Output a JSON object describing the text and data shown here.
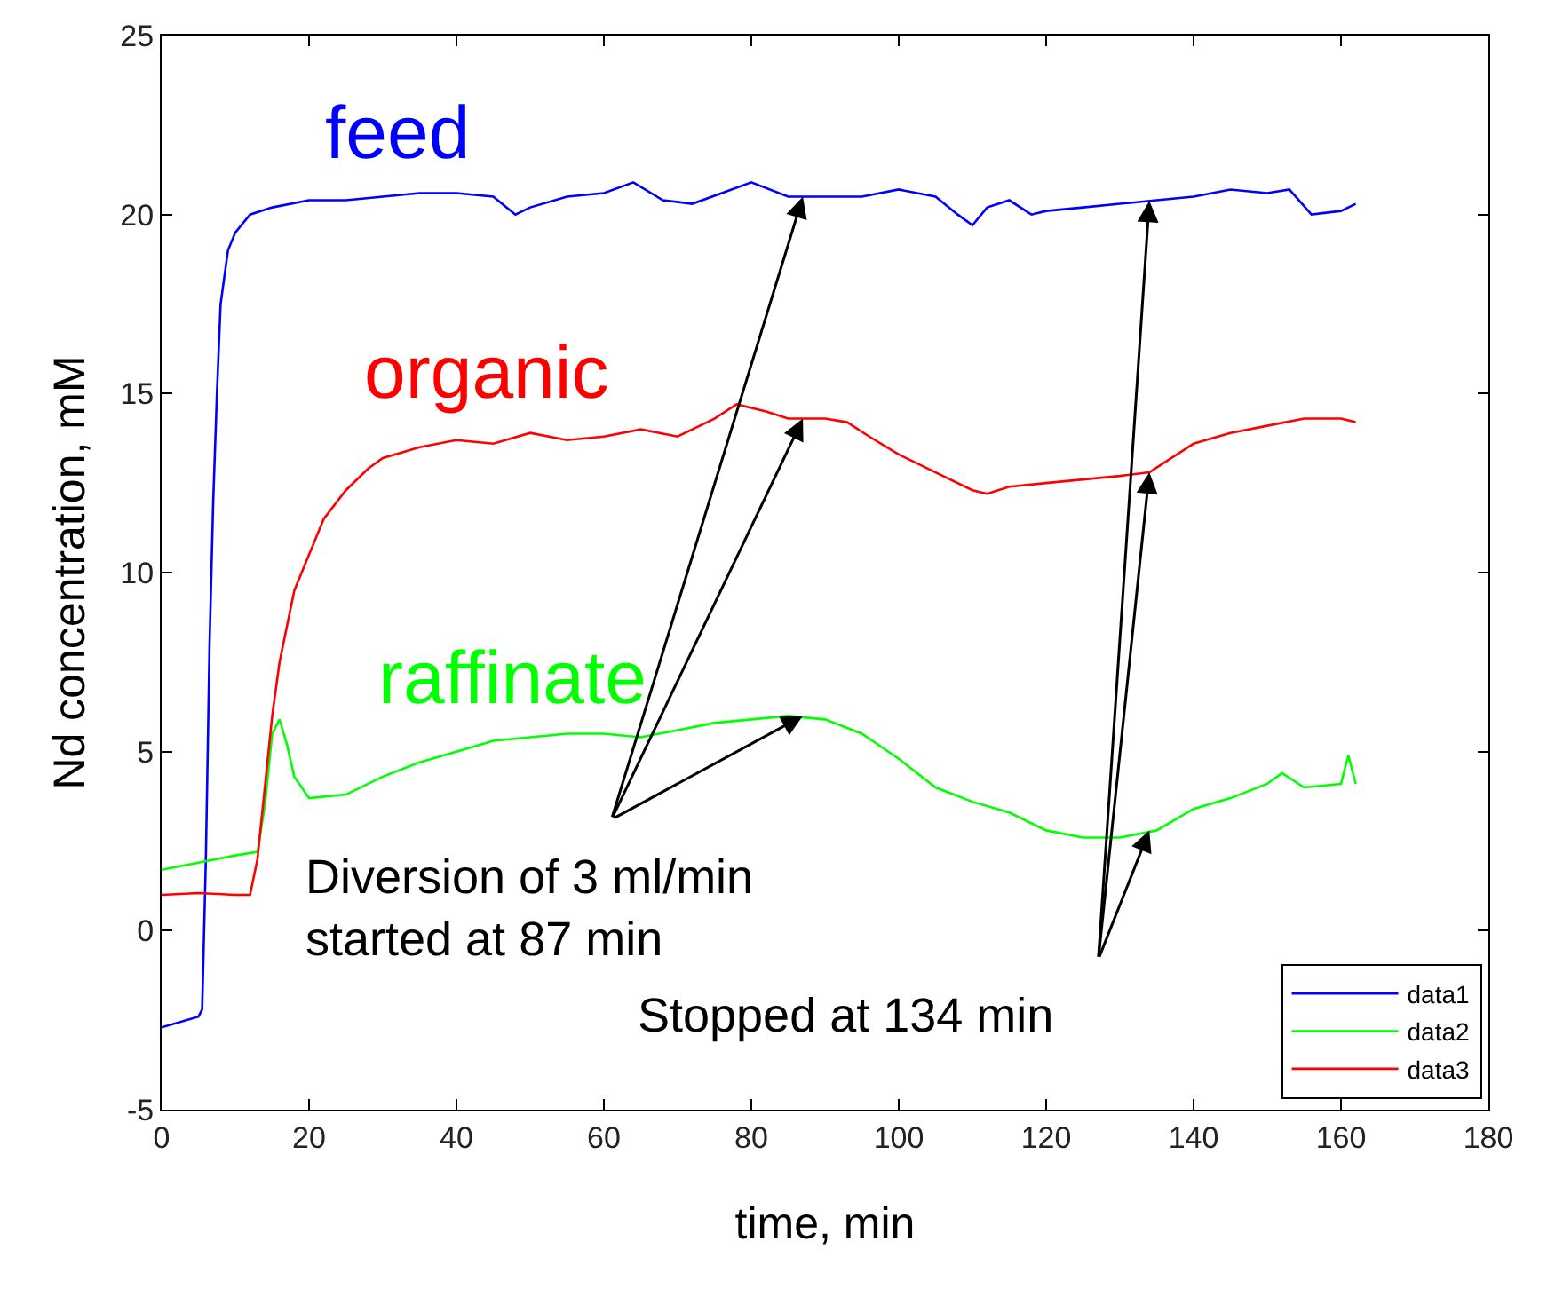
{
  "chart_data": {
    "type": "line",
    "xlabel": "time, min",
    "ylabel": "Nd concentration, mM",
    "xlim": [
      0,
      180
    ],
    "xticks": [
      0,
      20,
      40,
      60,
      80,
      100,
      120,
      140,
      160,
      180
    ],
    "ylim": [
      -5,
      25
    ],
    "yticks": [
      -5,
      0,
      5,
      10,
      15,
      20,
      25
    ],
    "grid": false,
    "legend": "bottom right",
    "marker": "none",
    "line_style": "solid",
    "series": [
      {
        "name": "data1",
        "color": "#0000ff",
        "x": [
          0,
          5,
          5.5,
          6,
          6.5,
          7,
          7.5,
          8,
          9,
          10,
          12,
          15,
          20,
          25,
          30,
          35,
          40,
          45,
          48,
          50,
          55,
          60,
          64,
          68,
          72,
          76,
          80,
          85,
          90,
          95,
          100,
          105,
          108,
          110,
          112,
          115,
          118,
          120,
          125,
          130,
          135,
          140,
          145,
          150,
          153,
          156,
          160,
          162
        ],
        "values": [
          -2.7,
          -2.4,
          -2.2,
          2,
          8,
          12,
          15,
          17.5,
          19,
          19.5,
          20,
          20.2,
          20.4,
          20.4,
          20.5,
          20.6,
          20.6,
          20.5,
          20.0,
          20.2,
          20.5,
          20.6,
          20.9,
          20.4,
          20.3,
          20.6,
          20.9,
          20.5,
          20.5,
          20.5,
          20.7,
          20.5,
          20.0,
          19.7,
          20.2,
          20.4,
          20.0,
          20.1,
          20.2,
          20.3,
          20.4,
          20.5,
          20.7,
          20.6,
          20.7,
          20.0,
          20.1,
          20.3
        ]
      },
      {
        "name": "data2",
        "color": "#00ff00",
        "x": [
          0,
          5,
          10,
          13,
          14,
          15,
          16,
          17,
          18,
          20,
          25,
          30,
          35,
          40,
          45,
          50,
          55,
          60,
          65,
          70,
          75,
          80,
          85,
          90,
          95,
          100,
          105,
          110,
          115,
          120,
          125,
          130,
          135,
          140,
          145,
          150,
          152,
          155,
          160,
          161,
          162
        ],
        "values": [
          1.7,
          1.9,
          2.1,
          2.2,
          3.5,
          5.5,
          5.9,
          5.2,
          4.3,
          3.7,
          3.8,
          4.3,
          4.7,
          5.0,
          5.3,
          5.4,
          5.5,
          5.5,
          5.4,
          5.6,
          5.8,
          5.9,
          6.0,
          5.9,
          5.5,
          4.8,
          4.0,
          3.6,
          3.3,
          2.8,
          2.6,
          2.6,
          2.8,
          3.4,
          3.7,
          4.1,
          4.4,
          4.0,
          4.1,
          4.9,
          4.1
        ]
      },
      {
        "name": "data3",
        "color": "#ff0000",
        "x": [
          0,
          5,
          10,
          12,
          13,
          14,
          15,
          16,
          18,
          20,
          22,
          25,
          28,
          30,
          35,
          40,
          45,
          50,
          55,
          60,
          65,
          70,
          75,
          78,
          82,
          85,
          90,
          93,
          96,
          100,
          105,
          110,
          112,
          115,
          120,
          125,
          130,
          134,
          137,
          140,
          145,
          150,
          155,
          160,
          162
        ],
        "values": [
          1.0,
          1.05,
          1.0,
          1.0,
          2,
          4,
          6,
          7.5,
          9.5,
          10.5,
          11.5,
          12.3,
          12.9,
          13.2,
          13.5,
          13.7,
          13.6,
          13.9,
          13.7,
          13.8,
          14.0,
          13.8,
          14.3,
          14.7,
          14.5,
          14.3,
          14.3,
          14.2,
          13.8,
          13.3,
          12.8,
          12.3,
          12.2,
          12.4,
          12.5,
          12.6,
          12.7,
          12.8,
          13.2,
          13.6,
          13.9,
          14.1,
          14.3,
          14.3,
          14.2
        ]
      }
    ],
    "annotations": [
      "feed",
      "organic",
      "raffinate",
      {
        "text": "Diversion of 3 ml/min\nstarted at 87 min",
        "x": 87,
        "y": 6.0
      },
      {
        "text": "Stopped at 134 min",
        "x": 134,
        "y": 2.8
      }
    ]
  }
}
